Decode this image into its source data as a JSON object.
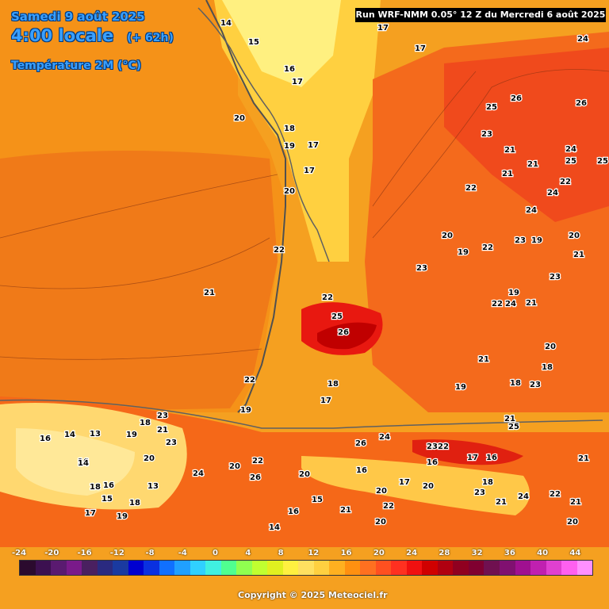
{
  "header": {
    "date": "Samedi 9 août 2025",
    "local_time": "4:00 locale",
    "offset": "(+ 62h)",
    "variable": "Température 2M (°C)"
  },
  "run_info": "Run WRF-NMM 0.05° 12 Z du Mercredi 6 août 2025",
  "copyright": "Copyright © 2025 Meteociel.fr",
  "legend": {
    "labels": [
      "-24",
      "-20",
      "-16",
      "-12",
      "-8",
      "-4",
      "0",
      "4",
      "8",
      "12",
      "16",
      "20",
      "24",
      "28",
      "32",
      "36",
      "40",
      "44"
    ],
    "colors": [
      "#2b0a2e",
      "#3c1050",
      "#5a1a70",
      "#7a1a8a",
      "#4a2060",
      "#2a2a80",
      "#1a3aa0",
      "#0000d0",
      "#0a30e0",
      "#1070ff",
      "#20a0ff",
      "#30d0ff",
      "#40f0e0",
      "#50ff90",
      "#90ff50",
      "#c0ff30",
      "#e0f020",
      "#fff040",
      "#ffe060",
      "#ffd040",
      "#ffb020",
      "#ff9010",
      "#ff7020",
      "#ff5020",
      "#ff3020",
      "#f01010",
      "#d00000",
      "#b00010",
      "#900020",
      "#800030",
      "#701050",
      "#801070",
      "#a01090",
      "#c020b0",
      "#e040d0",
      "#ff60f0",
      "#ff90ff"
    ]
  },
  "map_labels": [
    {
      "t": "14"
    },
    {
      "t": "15"
    },
    {
      "t": "16"
    },
    {
      "t": "17"
    },
    {
      "t": "17"
    },
    {
      "t": "17"
    },
    {
      "t": "20"
    },
    {
      "t": "18"
    },
    {
      "t": "19"
    },
    {
      "t": "17"
    },
    {
      "t": "17"
    },
    {
      "t": "20"
    },
    {
      "t": "22"
    },
    {
      "t": "21"
    },
    {
      "t": "22"
    },
    {
      "t": "26"
    },
    {
      "t": "25"
    },
    {
      "t": "22"
    },
    {
      "t": "18"
    },
    {
      "t": "17"
    },
    {
      "t": "19"
    },
    {
      "t": "24"
    },
    {
      "t": "26"
    },
    {
      "t": "25"
    },
    {
      "t": "26"
    },
    {
      "t": "23"
    },
    {
      "t": "21"
    },
    {
      "t": "21"
    },
    {
      "t": "22"
    },
    {
      "t": "24"
    },
    {
      "t": "25"
    },
    {
      "t": "25"
    },
    {
      "t": "21"
    },
    {
      "t": "22"
    },
    {
      "t": "24"
    },
    {
      "t": "24"
    },
    {
      "t": "23"
    },
    {
      "t": "19"
    },
    {
      "t": "20"
    },
    {
      "t": "21"
    },
    {
      "t": "23"
    },
    {
      "t": "22"
    },
    {
      "t": "24"
    },
    {
      "t": "21"
    },
    {
      "t": "23"
    },
    {
      "t": "20"
    },
    {
      "t": "19"
    },
    {
      "t": "22"
    },
    {
      "t": "19"
    },
    {
      "t": "18"
    },
    {
      "t": "20"
    },
    {
      "t": "21"
    },
    {
      "t": "19"
    },
    {
      "t": "18"
    },
    {
      "t": "23"
    },
    {
      "t": "21"
    },
    {
      "t": "25"
    },
    {
      "t": "26"
    },
    {
      "t": "24"
    },
    {
      "t": "23"
    },
    {
      "t": "22"
    },
    {
      "t": "17"
    },
    {
      "t": "16"
    },
    {
      "t": "16"
    },
    {
      "t": "16"
    },
    {
      "t": "17"
    },
    {
      "t": "20"
    },
    {
      "t": "18"
    },
    {
      "t": "23"
    },
    {
      "t": "21"
    },
    {
      "t": "24"
    },
    {
      "t": "22"
    },
    {
      "t": "21"
    },
    {
      "t": "20"
    },
    {
      "t": "20"
    },
    {
      "t": "22"
    },
    {
      "t": "20"
    },
    {
      "t": "21"
    },
    {
      "t": "16"
    },
    {
      "t": "15"
    },
    {
      "t": "14"
    },
    {
      "t": "13"
    },
    {
      "t": "14"
    },
    {
      "t": "16"
    },
    {
      "t": "16"
    },
    {
      "t": "18"
    },
    {
      "t": "19"
    },
    {
      "t": "20"
    },
    {
      "t": "21"
    },
    {
      "t": "23"
    },
    {
      "t": "18"
    },
    {
      "t": "20"
    },
    {
      "t": "22"
    },
    {
      "t": "24"
    },
    {
      "t": "26"
    },
    {
      "t": "20"
    },
    {
      "t": "19"
    },
    {
      "t": "18"
    },
    {
      "t": "17"
    },
    {
      "t": "15"
    },
    {
      "t": "13"
    },
    {
      "t": "14"
    },
    {
      "t": "16"
    },
    {
      "t": "23"
    },
    {
      "t": "21"
    }
  ]
}
